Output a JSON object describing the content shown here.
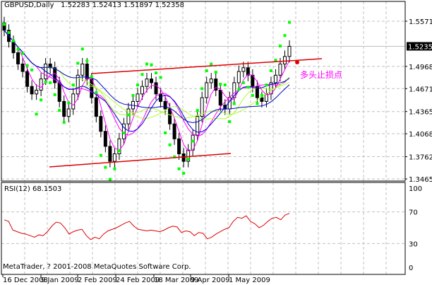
{
  "header": {
    "symbol_timeframe": "GBPUSD,Daily",
    "ohlc": "1.52283 1.52413 1.51897 1.52358"
  },
  "price_axis": {
    "labels": [
      "1.55710",
      "1.52358",
      "1.49680",
      "1.46710",
      "1.43650",
      "1.40680",
      "1.37620",
      "1.34650"
    ],
    "current_price": "1.52358"
  },
  "rsi_panel": {
    "title": "RSI(12) 68.1503",
    "axis_labels": [
      "100",
      "70",
      "30",
      "0"
    ]
  },
  "copyright": "MetaTrader, ? 2001-2008 MetaQuotes Software Corp.",
  "annotation": {
    "text": "多头止损点",
    "color": "#FF00FF"
  },
  "time_axis": {
    "labels": [
      "16 Dec 2008",
      "9 Jan 2009",
      "2 Feb 2009",
      "24 Feb 2009",
      "18 Mar 2009",
      "9 Apr 2009",
      "1 May 2009"
    ]
  },
  "colors": {
    "candle": "#000000",
    "sar": "#00FF00",
    "ma_blue": "#0000CC",
    "ma_magenta": "#FF00FF",
    "ma_lime": "#ADFF2F",
    "channel": "#DD0000",
    "rsi": "#DD0000",
    "grid": "#C0C0C0"
  },
  "chart_data": [
    {
      "type": "candlestick",
      "title": "GBPUSD,Daily 1.52283 1.52413 1.51897 1.52358",
      "xlabel": "",
      "ylabel": "",
      "ylim": [
        1.3465,
        1.5571
      ],
      "y_ticks": [
        1.5571,
        1.4968,
        1.4671,
        1.4365,
        1.4068,
        1.3762,
        1.3465
      ],
      "x_ticks": [
        "16 Dec 2008",
        "9 Jan 2009",
        "2 Feb 2009",
        "24 Feb 2009",
        "18 Mar 2009",
        "9 Apr 2009",
        "1 May 2009"
      ],
      "grid": true,
      "last_close": 1.52358,
      "indicators": [
        "Parabolic SAR (green dots)",
        "Moving averages (blue, magenta, yellow-green)",
        "Channel trendlines (red)"
      ],
      "approx_close_path": [
        1.545,
        1.53,
        1.515,
        1.5,
        1.49,
        1.47,
        1.46,
        1.465,
        1.48,
        1.5,
        1.495,
        1.475,
        1.45,
        1.43,
        1.44,
        1.46,
        1.485,
        1.5,
        1.48,
        1.455,
        1.43,
        1.41,
        1.39,
        1.37,
        1.38,
        1.4,
        1.42,
        1.44,
        1.45,
        1.46,
        1.47,
        1.48,
        1.475,
        1.46,
        1.45,
        1.44,
        1.42,
        1.4,
        1.38,
        1.37,
        1.385,
        1.405,
        1.43,
        1.455,
        1.475,
        1.48,
        1.465,
        1.445,
        1.44,
        1.455,
        1.475,
        1.49,
        1.495,
        1.485,
        1.47,
        1.455,
        1.45,
        1.46,
        1.475,
        1.485,
        1.5,
        1.51,
        1.52358
      ],
      "annotations": [
        {
          "text": "多头止损点",
          "x": "right of last bar",
          "y": 1.503
        }
      ]
    },
    {
      "type": "line",
      "title": "RSI(12) 68.1503",
      "ylim": [
        0,
        100
      ],
      "y_ticks": [
        100,
        70,
        30,
        0
      ],
      "grid": true,
      "series": [
        {
          "name": "RSI(12)",
          "values": [
            60,
            58,
            47,
            45,
            43,
            42,
            40,
            38,
            41,
            40,
            45,
            52,
            57,
            56,
            50,
            42,
            45,
            47,
            48,
            40,
            35,
            38,
            36,
            42,
            46,
            48,
            50,
            53,
            56,
            58,
            52,
            48,
            47,
            46,
            47,
            46,
            45,
            47,
            50,
            52,
            51,
            44,
            46,
            45,
            40,
            44,
            43,
            36,
            38,
            42,
            45,
            48,
            50,
            58,
            63,
            62,
            65,
            58,
            55,
            50,
            53,
            58,
            62,
            63,
            60,
            66,
            68
          ]
        }
      ],
      "last_value": 68.1503
    }
  ]
}
